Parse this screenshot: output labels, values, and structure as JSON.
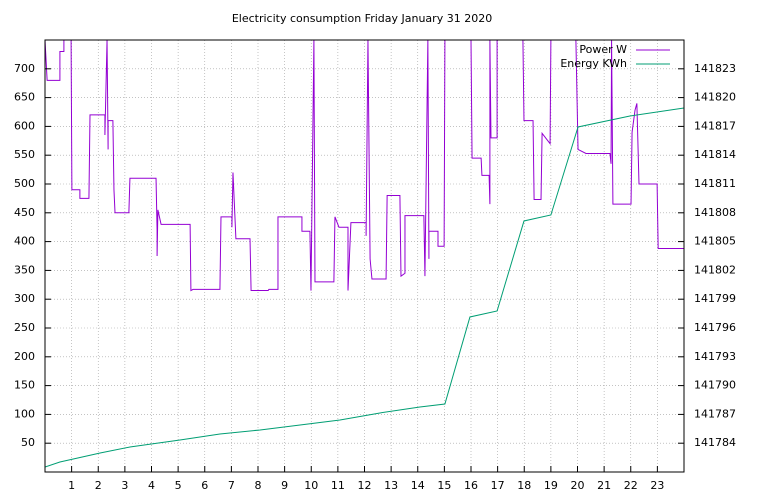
{
  "chart_data": {
    "type": "line",
    "title": "Electricity consumption Friday January 31 2020",
    "xlim": [
      0,
      24
    ],
    "xticks": [
      1,
      2,
      3,
      4,
      5,
      6,
      7,
      8,
      9,
      10,
      11,
      12,
      13,
      14,
      15,
      16,
      17,
      18,
      19,
      20,
      21,
      22,
      23
    ],
    "ylim": [
      0,
      750
    ],
    "yticks": [
      50,
      100,
      150,
      200,
      250,
      300,
      350,
      400,
      450,
      500,
      550,
      600,
      650,
      700
    ],
    "y2lim": [
      141781,
      141826
    ],
    "y2ticks": [
      141784,
      141787,
      141790,
      141793,
      141796,
      141799,
      141802,
      141805,
      141808,
      141811,
      141814,
      141817,
      141820,
      141823
    ],
    "grid": true,
    "legend": "top-right",
    "series": [
      {
        "name": "Power W",
        "color": "#9400d3",
        "x": [
          0,
          0.08,
          0.56,
          0.56,
          0.71,
          0.71,
          0.98,
          1.01,
          1.31,
          1.31,
          1.65,
          1.69,
          2.25,
          2.25,
          2.33,
          2.37,
          2.37,
          2.55,
          2.59,
          2.63,
          3.15,
          3.19,
          4.17,
          4.21,
          4.21,
          4.24,
          4.36,
          5.45,
          5.48,
          5.56,
          6.57,
          6.61,
          7.02,
          7.02,
          7.06,
          7.17,
          7.7,
          7.74,
          8.38,
          8.41,
          8.75,
          8.75,
          9.65,
          9.65,
          9.95,
          9.99,
          10.1,
          10.14,
          10.85,
          10.89,
          11.04,
          11.38,
          11.38,
          11.49,
          12.06,
          12.06,
          12.13,
          12.21,
          12.28,
          12.81,
          12.85,
          13.33,
          13.37,
          13.52,
          13.52,
          14.23,
          14.27,
          14.38,
          14.42,
          14.42,
          14.76,
          14.76,
          14.99,
          15.02,
          16.0,
          16.04,
          16.38,
          16.41,
          16.68,
          16.71,
          16.71,
          16.75,
          16.98,
          16.98,
          17.95,
          17.99,
          18.33,
          18.37,
          18.63,
          18.67,
          18.97,
          19.0,
          19.94,
          20.02,
          20.32,
          21.22,
          21.26,
          21.28,
          21.33,
          22.01,
          22.05,
          22.16,
          22.23,
          22.31,
          22.99,
          23.03,
          24
        ],
        "values": [
          750,
          680,
          680,
          730,
          730,
          750,
          750,
          490,
          490,
          475,
          475,
          620,
          620,
          585,
          750,
          560,
          610,
          610,
          490,
          450,
          450,
          510,
          510,
          420,
          375,
          455,
          430,
          430,
          315,
          317,
          317,
          443,
          443,
          425,
          520,
          405,
          405,
          315,
          315,
          317,
          317,
          443,
          443,
          418,
          418,
          315,
          750,
          330,
          330,
          443,
          425,
          425,
          315,
          433,
          433,
          410,
          750,
          370,
          335,
          335,
          480,
          480,
          340,
          345,
          445,
          445,
          340,
          750,
          370,
          418,
          418,
          392,
          392,
          750,
          750,
          545,
          545,
          515,
          515,
          465,
          750,
          580,
          580,
          750,
          750,
          610,
          610,
          473,
          473,
          588,
          570,
          750,
          750,
          560,
          553,
          553,
          535,
          750,
          465,
          465,
          590,
          628,
          640,
          500,
          500,
          388,
          388
        ]
      },
      {
        "name": "Energy KWh",
        "color": "#009e73",
        "axis": "y2",
        "x": [
          0,
          0.56,
          2.07,
          3.19,
          5.07,
          6.57,
          8.08,
          9.58,
          11.08,
          12.58,
          14.08,
          15.02,
          15.96,
          16.98,
          17.99,
          19.0,
          20.02,
          21.97,
          24
        ],
        "values": [
          141781.52,
          141782.04,
          141782.98,
          141783.6,
          141784.33,
          141784.96,
          141785.38,
          141785.9,
          141786.42,
          141787.15,
          141787.77,
          141788.08,
          141797.15,
          141797.77,
          141807.15,
          141807.77,
          141816.94,
          141818.08,
          141818.92
        ]
      }
    ]
  }
}
